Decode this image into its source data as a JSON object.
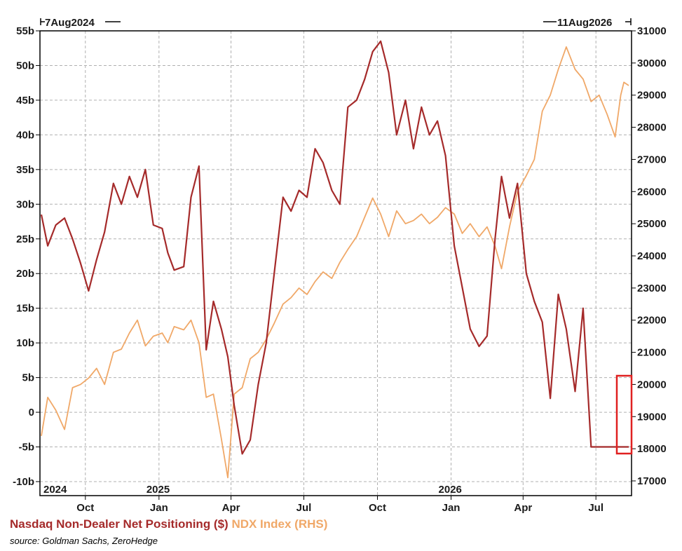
{
  "chart_data": {
    "type": "line",
    "start_label": "7Aug2024",
    "end_label": "11Aug2026",
    "x_month_labels": [
      "Oct",
      "Jan",
      "Apr",
      "Jul",
      "Oct",
      "Jan",
      "Apr",
      "Jul"
    ],
    "x_year_labels": [
      "2024",
      "2025",
      "2026"
    ],
    "left_axis": {
      "ylim": [
        -10,
        55
      ],
      "ticks": [
        "55b",
        "50b",
        "45b",
        "40b",
        "35b",
        "30b",
        "25b",
        "20b",
        "15b",
        "10b",
        "5b",
        "0",
        "-5b",
        "-10b"
      ]
    },
    "right_axis": {
      "ylim": [
        16700,
        31000
      ],
      "ticks": [
        "31000",
        "30000",
        "29000",
        "28000",
        "27000",
        "26000",
        "25000",
        "24000",
        "23000",
        "22000",
        "21000",
        "20000",
        "19000",
        "18000",
        "17000"
      ]
    },
    "grid": true,
    "series": [
      {
        "name": "Nasdaq Non-Dealer Net Positioning ($)",
        "axis": "left",
        "color": "#a52a2a",
        "x": [
          "2024-08-07",
          "2024-08-15",
          "2024-08-25",
          "2024-09-05",
          "2024-09-15",
          "2024-09-25",
          "2024-10-05",
          "2024-10-15",
          "2024-10-25",
          "2024-11-05",
          "2024-11-15",
          "2024-11-25",
          "2024-12-05",
          "2024-12-15",
          "2024-12-25",
          "2025-01-05",
          "2025-01-12",
          "2025-01-20",
          "2025-02-01",
          "2025-02-10",
          "2025-02-20",
          "2025-03-01",
          "2025-03-10",
          "2025-03-20",
          "2025-03-28",
          "2025-04-05",
          "2025-04-15",
          "2025-04-25",
          "2025-05-05",
          "2025-05-15",
          "2025-05-25",
          "2025-06-05",
          "2025-06-15",
          "2025-06-25",
          "2025-07-05",
          "2025-07-15",
          "2025-07-25",
          "2025-08-05",
          "2025-08-15",
          "2025-08-25",
          "2025-09-05",
          "2025-09-15",
          "2025-09-25",
          "2025-10-05",
          "2025-10-15",
          "2025-10-25",
          "2025-11-05",
          "2025-11-15",
          "2025-11-25",
          "2025-12-05",
          "2025-12-15",
          "2025-12-25",
          "2026-01-05",
          "2026-01-15",
          "2026-01-25",
          "2026-02-05",
          "2026-02-15",
          "2026-02-25",
          "2026-03-05",
          "2026-03-15",
          "2026-03-25",
          "2026-04-05",
          "2026-04-15",
          "2026-04-25",
          "2026-05-05",
          "2026-05-15",
          "2026-05-25",
          "2026-06-05",
          "2026-06-15",
          "2026-06-25",
          "2026-07-05",
          "2026-07-15",
          "2026-07-25",
          "2026-08-01",
          "2026-08-05",
          "2026-08-11"
        ],
        "values": [
          28.5,
          24,
          27,
          28,
          25,
          21.5,
          17.5,
          22,
          26,
          33,
          30,
          34,
          31,
          35,
          27,
          26.5,
          23,
          20.5,
          21,
          31,
          35.5,
          9,
          16,
          12,
          8,
          1,
          -6,
          -4,
          4,
          10,
          20,
          31,
          29,
          32,
          31,
          38,
          36,
          32,
          30,
          44,
          45,
          48,
          52,
          53.5,
          49,
          40,
          45,
          38,
          44,
          40,
          42,
          37,
          24,
          18,
          12,
          9.5,
          11,
          25,
          34,
          28,
          33,
          20,
          16,
          13,
          2,
          17,
          12,
          3,
          15,
          -5,
          -5,
          -5,
          -5,
          -5,
          -5,
          -5
        ],
        "values_comment_free": true
      },
      {
        "name": "NDX Index (RHS)",
        "axis": "right",
        "color": "#f0a868",
        "x": [
          "2024-08-07",
          "2024-08-15",
          "2024-08-25",
          "2024-09-05",
          "2024-09-15",
          "2024-09-25",
          "2024-10-05",
          "2024-10-15",
          "2024-10-25",
          "2024-11-05",
          "2024-11-15",
          "2024-11-25",
          "2024-12-05",
          "2024-12-15",
          "2024-12-25",
          "2025-01-05",
          "2025-01-12",
          "2025-01-20",
          "2025-02-01",
          "2025-02-10",
          "2025-02-20",
          "2025-03-01",
          "2025-03-10",
          "2025-03-20",
          "2025-03-28",
          "2025-04-05",
          "2025-04-15",
          "2025-04-25",
          "2025-05-05",
          "2025-05-15",
          "2025-05-25",
          "2025-06-05",
          "2025-06-15",
          "2025-06-25",
          "2025-07-05",
          "2025-07-15",
          "2025-07-25",
          "2025-08-05",
          "2025-08-15",
          "2025-08-25",
          "2025-09-05",
          "2025-09-15",
          "2025-09-25",
          "2025-10-05",
          "2025-10-15",
          "2025-10-25",
          "2025-11-05",
          "2025-11-15",
          "2025-11-25",
          "2025-12-05",
          "2025-12-15",
          "2025-12-25",
          "2026-01-05",
          "2026-01-15",
          "2026-01-25",
          "2026-02-05",
          "2026-02-15",
          "2026-02-25",
          "2026-03-05",
          "2026-03-15",
          "2026-03-25",
          "2026-04-05",
          "2026-04-15",
          "2026-04-25",
          "2026-05-05",
          "2026-05-15",
          "2026-05-25",
          "2026-06-05",
          "2026-06-15",
          "2026-06-25",
          "2026-07-05",
          "2026-07-15",
          "2026-07-25",
          "2026-08-01",
          "2026-08-05",
          "2026-08-11"
        ],
        "values": [
          18400,
          19600,
          19200,
          18600,
          19900,
          20000,
          20200,
          20500,
          20000,
          21000,
          21100,
          21600,
          22000,
          21200,
          21500,
          21600,
          21300,
          21800,
          21700,
          22000,
          21300,
          19600,
          19700,
          18300,
          17100,
          19700,
          19900,
          20800,
          21000,
          21400,
          21900,
          22500,
          22700,
          23000,
          22800,
          23200,
          23500,
          23300,
          23800,
          24200,
          24600,
          25200,
          25800,
          25300,
          24600,
          25400,
          25000,
          25100,
          25300,
          25000,
          25200,
          25500,
          25300,
          24700,
          25000,
          24600,
          24900,
          24300,
          23600,
          24900,
          26000,
          26500,
          27000,
          28500,
          29000,
          29800,
          30500,
          29800,
          29500,
          28800,
          29000,
          28400,
          27700,
          29000,
          29400,
          29300
        ]
      }
    ],
    "source": "source: Goldman Sachs, ZeroHedge"
  },
  "legend": {
    "series1": "Nasdaq Non-Dealer Net Positioning ($)",
    "series2": "NDX Index (RHS)"
  },
  "colors": {
    "series1": "#a52a2a",
    "series2": "#f0a868",
    "highlight": "#e02020",
    "grid": "#b0b0b0"
  }
}
